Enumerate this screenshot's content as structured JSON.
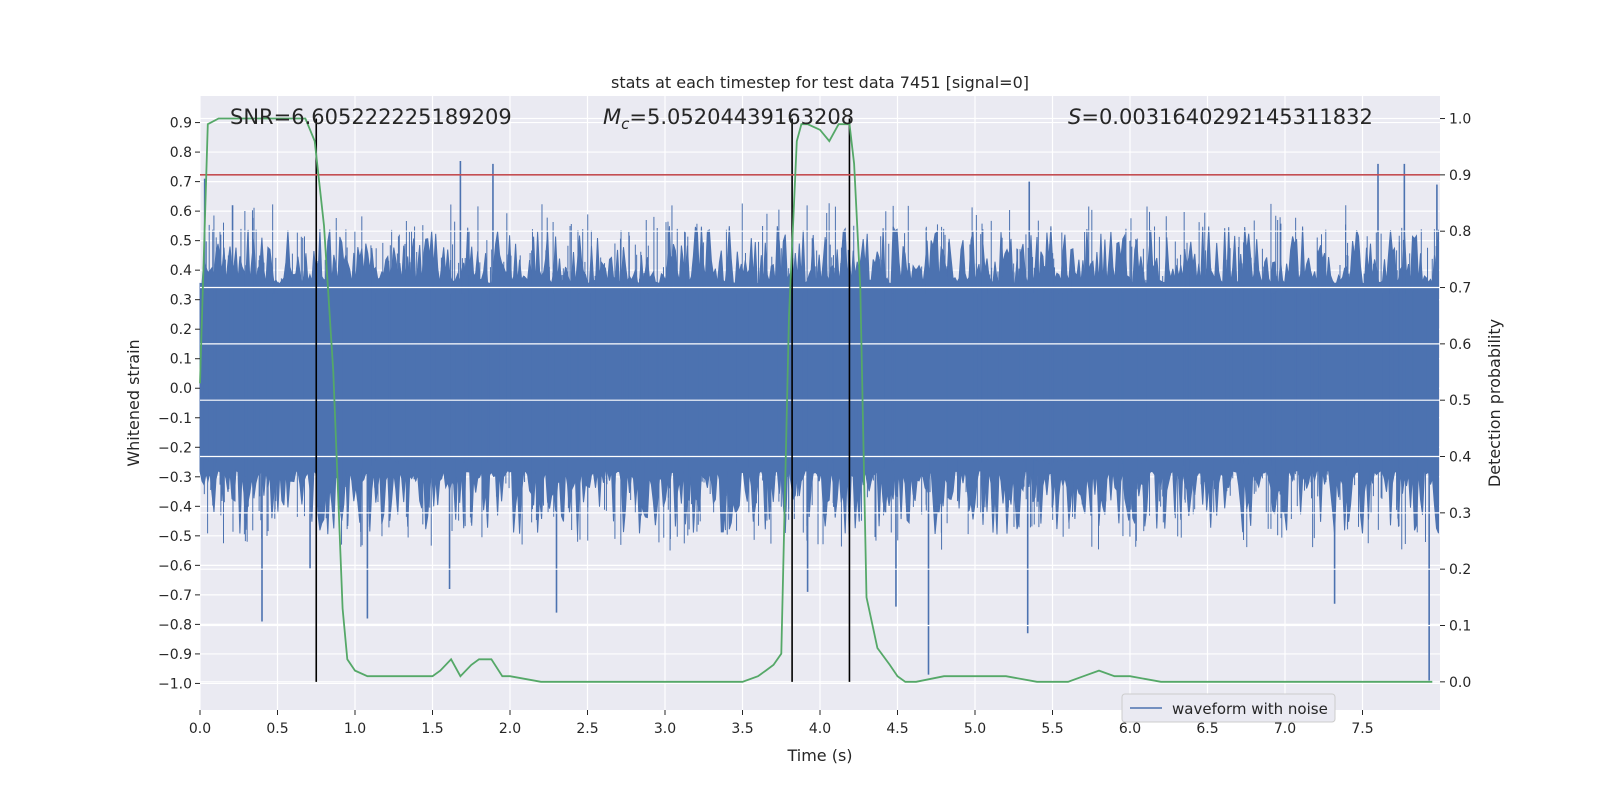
{
  "chart_data": {
    "type": "line",
    "title": "stats at each timestep for test data 7451 [signal=0]",
    "xlabel": "Time (s)",
    "ylabel": "Whitened strain",
    "ylabel_right": "Detection probability",
    "xlim": [
      0,
      8
    ],
    "ylim": [
      -1.09,
      0.99
    ],
    "ylim_right": [
      -0.05,
      1.04
    ],
    "x_ticks": [
      "0.0",
      "0.5",
      "1.0",
      "1.5",
      "2.0",
      "2.5",
      "3.0",
      "3.5",
      "4.0",
      "4.5",
      "5.0",
      "5.5",
      "6.0",
      "6.5",
      "7.0",
      "7.5"
    ],
    "y_ticks": [
      "0.9",
      "0.8",
      "0.7",
      "0.6",
      "0.5",
      "0.4",
      "0.3",
      "0.2",
      "0.1",
      "0.0",
      "−0.1",
      "−0.2",
      "−0.3",
      "−0.4",
      "−0.5",
      "−0.6",
      "−0.7",
      "−0.8",
      "−0.9",
      "−1.0"
    ],
    "y_ticks_right": [
      "1.0",
      "0.9",
      "0.8",
      "0.7",
      "0.6",
      "0.5",
      "0.4",
      "0.3",
      "0.2",
      "0.1",
      "0.0"
    ],
    "annotations": {
      "snr": "SNR=6.605222225189209",
      "mc_symbol": "M",
      "mc_subscript": "c",
      "mc_value": "=5.05204439163208",
      "s_symbol": "S",
      "s_value": "=0.003164029214531183​2"
    },
    "threshold": 0.9,
    "vertical_lines_x": [
      0.75,
      3.82,
      4.19
    ],
    "waveform": {
      "name": "waveform with noise",
      "color": "#4c72b0",
      "x_range": [
        0,
        7.99
      ],
      "core_band": [
        -0.24,
        0.32
      ],
      "typical_peak": [
        -0.5,
        0.55
      ],
      "spikes": [
        {
          "x": 0.03,
          "y": 0.71
        },
        {
          "x": 0.21,
          "y": 0.62
        },
        {
          "x": 0.4,
          "y": -0.79
        },
        {
          "x": 0.71,
          "y": -0.61
        },
        {
          "x": 1.08,
          "y": -0.78
        },
        {
          "x": 1.61,
          "y": -0.68
        },
        {
          "x": 1.68,
          "y": 0.77
        },
        {
          "x": 1.89,
          "y": 0.76
        },
        {
          "x": 2.3,
          "y": -0.76
        },
        {
          "x": 3.92,
          "y": -0.69
        },
        {
          "x": 4.49,
          "y": -0.74
        },
        {
          "x": 4.7,
          "y": -0.97
        },
        {
          "x": 5.34,
          "y": -0.83
        },
        {
          "x": 5.35,
          "y": 0.7
        },
        {
          "x": 7.32,
          "y": -0.73
        },
        {
          "x": 7.6,
          "y": 0.76
        },
        {
          "x": 7.77,
          "y": 0.76
        },
        {
          "x": 7.93,
          "y": -0.99
        },
        {
          "x": 7.98,
          "y": 0.69
        }
      ]
    },
    "probability": {
      "name": "detection probability",
      "color": "#55a868",
      "x": [
        0.0,
        0.05,
        0.12,
        0.2,
        0.3,
        0.4,
        0.5,
        0.6,
        0.68,
        0.74,
        0.8,
        0.86,
        0.92,
        0.95,
        1.0,
        1.08,
        1.2,
        1.3,
        1.4,
        1.5,
        1.55,
        1.62,
        1.68,
        1.75,
        1.8,
        1.88,
        1.95,
        2.0,
        2.2,
        2.5,
        3.0,
        3.5,
        3.6,
        3.65,
        3.7,
        3.75,
        3.8,
        3.85,
        3.88,
        3.92,
        4.0,
        4.06,
        4.12,
        4.19,
        4.22,
        4.26,
        4.3,
        4.37,
        4.45,
        4.5,
        4.55,
        4.62,
        4.8,
        4.95,
        5.0,
        5.1,
        5.2,
        5.4,
        5.6,
        5.7,
        5.8,
        5.9,
        6.0,
        6.2,
        6.6,
        7.0,
        7.3,
        7.5,
        7.6,
        7.8,
        7.95
      ],
      "y": [
        0.53,
        0.99,
        1.0,
        1.0,
        1.0,
        1.0,
        1.0,
        1.0,
        1.0,
        0.96,
        0.81,
        0.55,
        0.13,
        0.04,
        0.02,
        0.01,
        0.01,
        0.01,
        0.01,
        0.01,
        0.02,
        0.04,
        0.01,
        0.03,
        0.04,
        0.04,
        0.01,
        0.01,
        0.0,
        0.0,
        0.0,
        0.0,
        0.01,
        0.02,
        0.03,
        0.05,
        0.65,
        0.96,
        0.99,
        0.99,
        0.98,
        0.96,
        0.99,
        0.99,
        0.92,
        0.7,
        0.15,
        0.06,
        0.03,
        0.01,
        0.0,
        0.0,
        0.01,
        0.01,
        0.01,
        0.01,
        0.01,
        0.0,
        0.0,
        0.01,
        0.02,
        0.01,
        0.01,
        0.0,
        0.0,
        0.0,
        0.0,
        0.0,
        0.0,
        0.0,
        0.0
      ]
    },
    "legend": {
      "placement": "lower-right",
      "entries": [
        "waveform with noise"
      ]
    },
    "grid": true,
    "colors": {
      "axes_bg": "#eaeaf2",
      "grid": "#ffffff",
      "threshold": "#c44e52",
      "vlines": "#000000"
    }
  }
}
